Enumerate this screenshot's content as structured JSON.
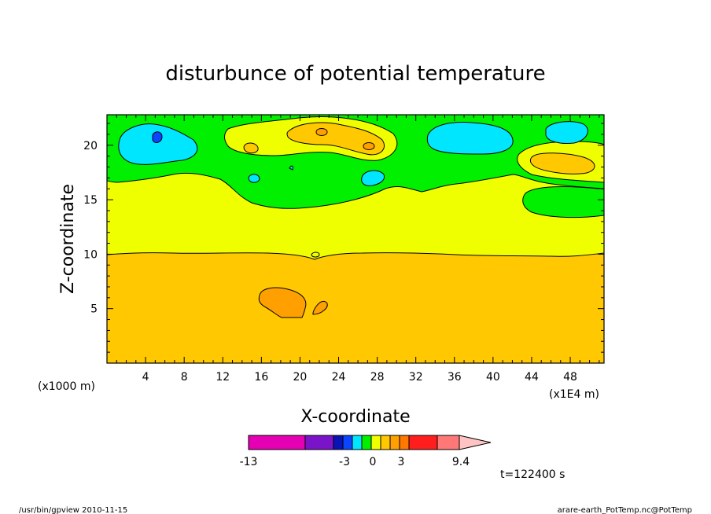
{
  "chart_data": {
    "type": "contour",
    "title": "disturbunce of potential temperature",
    "xlabel": "X-coordinate",
    "ylabel": "Z-coordinate",
    "x_unit": "(x1E4 m)",
    "y_unit": "(x1000 m)",
    "xlim": [
      0,
      51.5
    ],
    "ylim": [
      0,
      22.8
    ],
    "x_ticks": [
      4,
      8,
      12,
      16,
      20,
      24,
      28,
      32,
      36,
      40,
      44,
      48
    ],
    "y_ticks": [
      5,
      10,
      15,
      20
    ],
    "time_label": "t=122400 s",
    "colorbar": {
      "labels": [
        "-13",
        "-3",
        "0",
        "3",
        "9.4"
      ],
      "colors": [
        "#e600b4",
        "#7a14c8",
        "#0a14b4",
        "#0a46ff",
        "#00e6ff",
        "#00f000",
        "#f0ff00",
        "#ffc800",
        "#ffa000",
        "#ff7800",
        "#ff1e1e",
        "#ff7878",
        "#ffc3c3"
      ]
    },
    "regions": [
      {
        "level": "positive-low",
        "color": "#ffc800",
        "z_range": [
          0,
          10
        ]
      },
      {
        "level": "positive-small",
        "color": "#f0ff00",
        "z_range": [
          10,
          16.5
        ]
      },
      {
        "level": "near-zero",
        "color": "#00f000",
        "z_range": [
          16.5,
          22.8
        ]
      }
    ]
  },
  "footer": {
    "left": "/usr/bin/gpview   2010-11-15",
    "right": "arare-earth_PotTemp.nc@PotTemp"
  }
}
